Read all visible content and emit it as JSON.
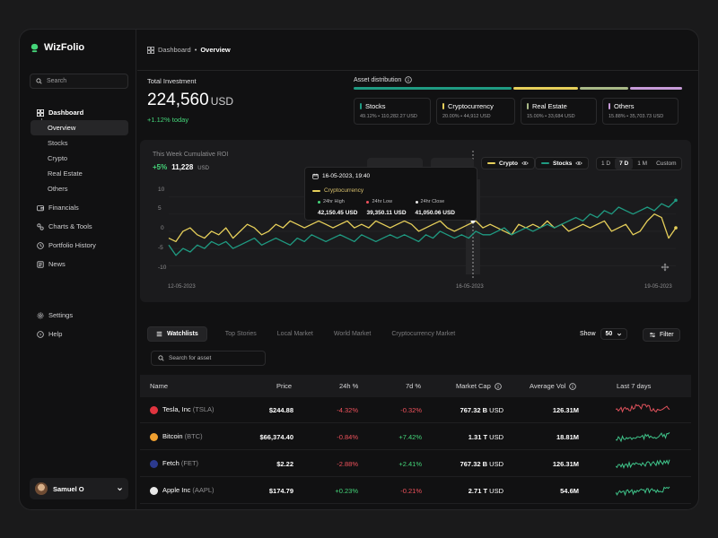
{
  "app": {
    "name": "WizFolio"
  },
  "sidebar": {
    "search_placeholder": "Search",
    "nav": [
      {
        "label": "Dashboard",
        "icon": "grid-icon"
      },
      {
        "label": "Financials",
        "icon": "wallet-icon"
      },
      {
        "label": "Charts & Tools",
        "icon": "tools-icon"
      },
      {
        "label": "Portfolio History",
        "icon": "clock-icon"
      },
      {
        "label": "News",
        "icon": "newspaper-icon"
      }
    ],
    "sub": [
      "Overview",
      "Stocks",
      "Crypto",
      "Real Estate",
      "Others"
    ],
    "settings": "Settings",
    "help": "Help",
    "user": "Samuel O"
  },
  "breadcrumb": {
    "parent": "Dashboard",
    "separator": "•",
    "current": "Overview"
  },
  "total_investment": {
    "label": "Total Investment",
    "value": "224,560",
    "currency": "USD",
    "change": "+1.12% today"
  },
  "asset_distribution": {
    "label": "Asset distribution",
    "items": [
      {
        "name": "Stocks",
        "sub": "49.12% • 110,282.27 USD",
        "color": "#1f9b82",
        "weight": 0.49
      },
      {
        "name": "Cryptocurrency",
        "sub": "20.00% • 44,912 USD",
        "color": "#e6cf5a",
        "weight": 0.2
      },
      {
        "name": "Real Estate",
        "sub": "15.00% • 33,684 USD",
        "color": "#a9b987",
        "weight": 0.15
      },
      {
        "name": "Others",
        "sub": "15.88% • 35,703.73 USD",
        "color": "#c79bd8",
        "weight": 0.16
      }
    ]
  },
  "roi": {
    "label": "This Week Cumulative ROI",
    "pct": "+5%",
    "value": "11,228",
    "unit": "USD",
    "legend": [
      {
        "name": "Crypto",
        "color": "#e6cf5a"
      },
      {
        "name": "Stocks",
        "color": "#1f9b82"
      }
    ],
    "ranges": [
      "1 D",
      "7 D",
      "1 M",
      "Custom"
    ],
    "active_range": "7 D"
  },
  "chart_data": {
    "type": "line",
    "y_ticks": [
      10,
      5,
      0,
      -5,
      -10
    ],
    "ylim": [
      -12,
      13
    ],
    "x_labels": [
      "12-05-2023",
      "16-05-2023",
      "19-05-2023"
    ],
    "series": [
      {
        "name": "Crypto",
        "color": "#e6cf5a",
        "values": [
          -2,
          -3,
          0,
          1,
          -1,
          -2,
          0,
          -1,
          1,
          -2,
          0,
          2,
          1,
          -1,
          0,
          2,
          1,
          3,
          2,
          1,
          2,
          3,
          2,
          1,
          2,
          3,
          1,
          2,
          1,
          3,
          2,
          1,
          2,
          3,
          2,
          0,
          1,
          2,
          3,
          1,
          0,
          1,
          2,
          3,
          1,
          2,
          1,
          0,
          -1,
          2,
          1,
          2,
          1,
          3,
          1,
          2,
          0,
          1,
          2,
          1,
          2,
          3,
          0,
          1,
          2,
          -1,
          0,
          3,
          5,
          4,
          -2,
          1
        ]
      },
      {
        "name": "Stocks",
        "color": "#1f9b82",
        "values": [
          -4,
          -7,
          -5,
          -6,
          -4,
          -5,
          -3,
          -4,
          -3,
          -5,
          -4,
          -3,
          -2,
          -4,
          -3,
          -2,
          -3,
          -4,
          -2,
          -3,
          -1,
          -2,
          -3,
          -2,
          -1,
          -2,
          -3,
          -1,
          -2,
          -3,
          -2,
          -1,
          -2,
          -1,
          -2,
          -3,
          -1,
          -2,
          0,
          -1,
          -2,
          -1,
          -2,
          0,
          -1,
          -1,
          0,
          1,
          -1,
          0,
          1,
          0,
          1,
          2,
          1,
          2,
          3,
          4,
          3,
          5,
          4,
          6,
          5,
          7,
          6,
          5,
          6,
          7,
          6,
          8,
          7,
          9
        ]
      }
    ],
    "tooltip": {
      "date": "16-05-2023, 19:40",
      "series": "Cryptocurrency",
      "items": [
        {
          "label": "24hr High",
          "value": "42,150.45 USD",
          "color": "#45d67a"
        },
        {
          "label": "24hr Low",
          "value": "39,350.11 USD",
          "color": "#f0525c"
        },
        {
          "label": "24hr Close",
          "value": "41,050.06 USD",
          "color": "#e8e8e8"
        }
      ]
    }
  },
  "watchlist": {
    "tabs": [
      "Watchlists",
      "Top Stories",
      "Local Market",
      "World Market",
      "Cryptocurrency Market"
    ],
    "show_label": "Show",
    "show_value": "50",
    "filter": "Filter",
    "search_placeholder": "Search for asset",
    "columns": [
      "Name",
      "Price",
      "24h %",
      "7d %",
      "Market Cap",
      "Average Vol",
      "Last 7 days"
    ],
    "rows": [
      {
        "name": "Tesla, Inc",
        "ticker": "(TSLA)",
        "price": "$244.88",
        "d1": "-4.32%",
        "d7": "-0.32%",
        "cap": "767.32",
        "cap_unit": "B",
        "cur": "USD",
        "vol": "126.31M",
        "icon_color": "#e0343f",
        "spark_color": "#e0525c",
        "d1_dir": "neg",
        "d7_dir": "neg"
      },
      {
        "name": "Bitcoin",
        "ticker": "(BTC)",
        "price": "$66,374.40",
        "d1": "-0.84%",
        "d7": "+7.42%",
        "cap": "1.31",
        "cap_unit": "T",
        "cur": "USD",
        "vol": "18.81M",
        "icon_color": "#f0a030",
        "spark_color": "#3fc48a",
        "d1_dir": "neg",
        "d7_dir": "pos"
      },
      {
        "name": "Fetch",
        "ticker": "(FET)",
        "price": "$2.22",
        "d1": "-2.88%",
        "d7": "+2.41%",
        "cap": "767.32",
        "cap_unit": "B",
        "cur": "USD",
        "vol": "126.31M",
        "icon_color": "#2c3a8e",
        "spark_color": "#3fc48a",
        "d1_dir": "neg",
        "d7_dir": "pos"
      },
      {
        "name": "Apple Inc",
        "ticker": "(AAPL)",
        "price": "$174.79",
        "d1": "+0.23%",
        "d7": "-0.21%",
        "cap": "2.71",
        "cap_unit": "T",
        "cur": "USD",
        "vol": "54.6M",
        "icon_color": "#e8e8e8",
        "spark_color": "#3fc48a",
        "d1_dir": "pos",
        "d7_dir": "neg"
      }
    ]
  }
}
